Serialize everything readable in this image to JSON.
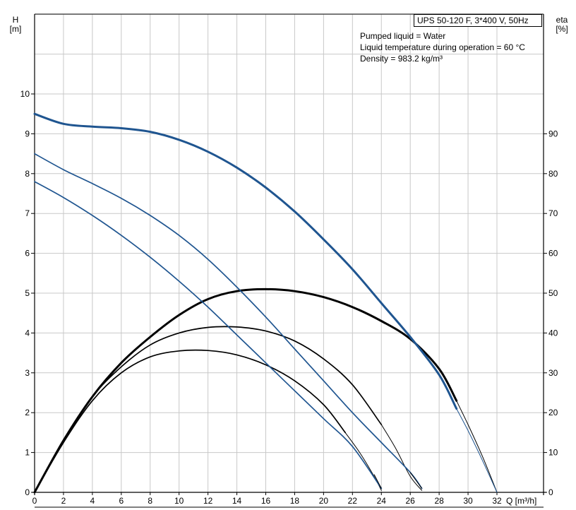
{
  "info": {
    "title": "UPS 50-120 F, 3*400 V, 50Hz",
    "lines": [
      "Pumped liquid = Water",
      "Liquid temperature during operation = 60 °C",
      "Density = 983.2 kg/m³"
    ]
  },
  "colors": {
    "head": "#1f5590",
    "eta": "#000000",
    "grid": "#c8c8c8"
  },
  "chart_data": {
    "type": "line",
    "xlabel": "Q [m³/h]",
    "ylabel": [
      "H",
      "[m]"
    ],
    "y2label": [
      "eta",
      "[%]"
    ],
    "xlim": [
      0,
      32
    ],
    "ylim": [
      0,
      10
    ],
    "y2lim": [
      0,
      100
    ],
    "xticks": [
      "0",
      "2",
      "4",
      "6",
      "8",
      "10",
      "12",
      "14",
      "16",
      "18",
      "20",
      "22",
      "24",
      "26",
      "28",
      "30",
      "32"
    ],
    "yticks": [
      "0",
      "1",
      "2",
      "3",
      "4",
      "5",
      "6",
      "7",
      "8",
      "9",
      "10"
    ],
    "y2ticks": [
      "0",
      "10",
      "20",
      "30",
      "40",
      "50",
      "60",
      "70",
      "80",
      "90"
    ],
    "grid": true,
    "head_curves": [
      {
        "bold": true,
        "points": [
          [
            0,
            9.5
          ],
          [
            2,
            9.25
          ],
          [
            4,
            9.18
          ],
          [
            6,
            9.14
          ],
          [
            8,
            9.05
          ],
          [
            10,
            8.85
          ],
          [
            12,
            8.55
          ],
          [
            14,
            8.15
          ],
          [
            16,
            7.65
          ],
          [
            18,
            7.05
          ],
          [
            20,
            6.35
          ],
          [
            22,
            5.6
          ],
          [
            24,
            4.75
          ],
          [
            26,
            3.9
          ],
          [
            28,
            2.95
          ],
          [
            29.2,
            2.1
          ]
        ],
        "extension": [
          [
            29.2,
            2.1
          ],
          [
            30,
            1.55
          ],
          [
            31,
            0.8
          ],
          [
            32,
            0
          ]
        ]
      },
      {
        "bold": false,
        "points": [
          [
            0,
            8.5
          ],
          [
            2,
            8.1
          ],
          [
            4,
            7.75
          ],
          [
            6,
            7.38
          ],
          [
            8,
            6.95
          ],
          [
            10,
            6.45
          ],
          [
            12,
            5.85
          ],
          [
            14,
            5.15
          ],
          [
            16,
            4.4
          ],
          [
            18,
            3.6
          ],
          [
            20,
            2.8
          ],
          [
            22,
            2.0
          ],
          [
            24,
            1.25
          ],
          [
            26,
            0.5
          ],
          [
            26.8,
            0.1
          ]
        ],
        "extension": []
      },
      {
        "bold": false,
        "points": [
          [
            0,
            7.8
          ],
          [
            2,
            7.4
          ],
          [
            4,
            6.95
          ],
          [
            6,
            6.45
          ],
          [
            8,
            5.9
          ],
          [
            10,
            5.3
          ],
          [
            12,
            4.65
          ],
          [
            14,
            3.95
          ],
          [
            16,
            3.25
          ],
          [
            18,
            2.55
          ],
          [
            20,
            1.85
          ],
          [
            22,
            1.15
          ],
          [
            24,
            0.1
          ]
        ],
        "extension": []
      }
    ],
    "eta_curves": [
      {
        "bold": true,
        "points": [
          [
            0,
            0
          ],
          [
            2,
            13
          ],
          [
            4,
            24
          ],
          [
            6,
            32.5
          ],
          [
            8,
            39
          ],
          [
            10,
            44.5
          ],
          [
            12,
            48.5
          ],
          [
            14,
            50.5
          ],
          [
            16,
            51
          ],
          [
            18,
            50.5
          ],
          [
            20,
            49
          ],
          [
            22,
            46.5
          ],
          [
            24,
            43
          ],
          [
            26,
            38.5
          ],
          [
            28,
            31
          ],
          [
            29.2,
            23
          ]
        ],
        "extension": [
          [
            29.2,
            23
          ],
          [
            30,
            17
          ],
          [
            31,
            9
          ],
          [
            32,
            0
          ]
        ]
      },
      {
        "bold": false,
        "points": [
          [
            0,
            0
          ],
          [
            2,
            13
          ],
          [
            4,
            24
          ],
          [
            6,
            31.5
          ],
          [
            8,
            37
          ],
          [
            10,
            40
          ],
          [
            12,
            41.4
          ],
          [
            14,
            41.5
          ],
          [
            16,
            40.5
          ],
          [
            18,
            38
          ],
          [
            20,
            33.5
          ],
          [
            22,
            27
          ],
          [
            24,
            17
          ]
        ],
        "extension": [
          [
            24,
            17
          ],
          [
            25,
            11
          ],
          [
            26,
            4
          ],
          [
            26.8,
            0.5
          ]
        ]
      },
      {
        "bold": false,
        "points": [
          [
            0,
            0
          ],
          [
            2,
            12.5
          ],
          [
            4,
            23
          ],
          [
            6,
            30
          ],
          [
            8,
            34
          ],
          [
            10,
            35.5
          ],
          [
            12,
            35.6
          ],
          [
            14,
            34.5
          ],
          [
            16,
            32
          ],
          [
            18,
            28
          ],
          [
            20,
            22
          ],
          [
            21.5,
            15
          ]
        ],
        "extension": [
          [
            21.5,
            15
          ],
          [
            22.5,
            10
          ],
          [
            23.5,
            4
          ],
          [
            24,
            0.5
          ]
        ]
      }
    ]
  }
}
